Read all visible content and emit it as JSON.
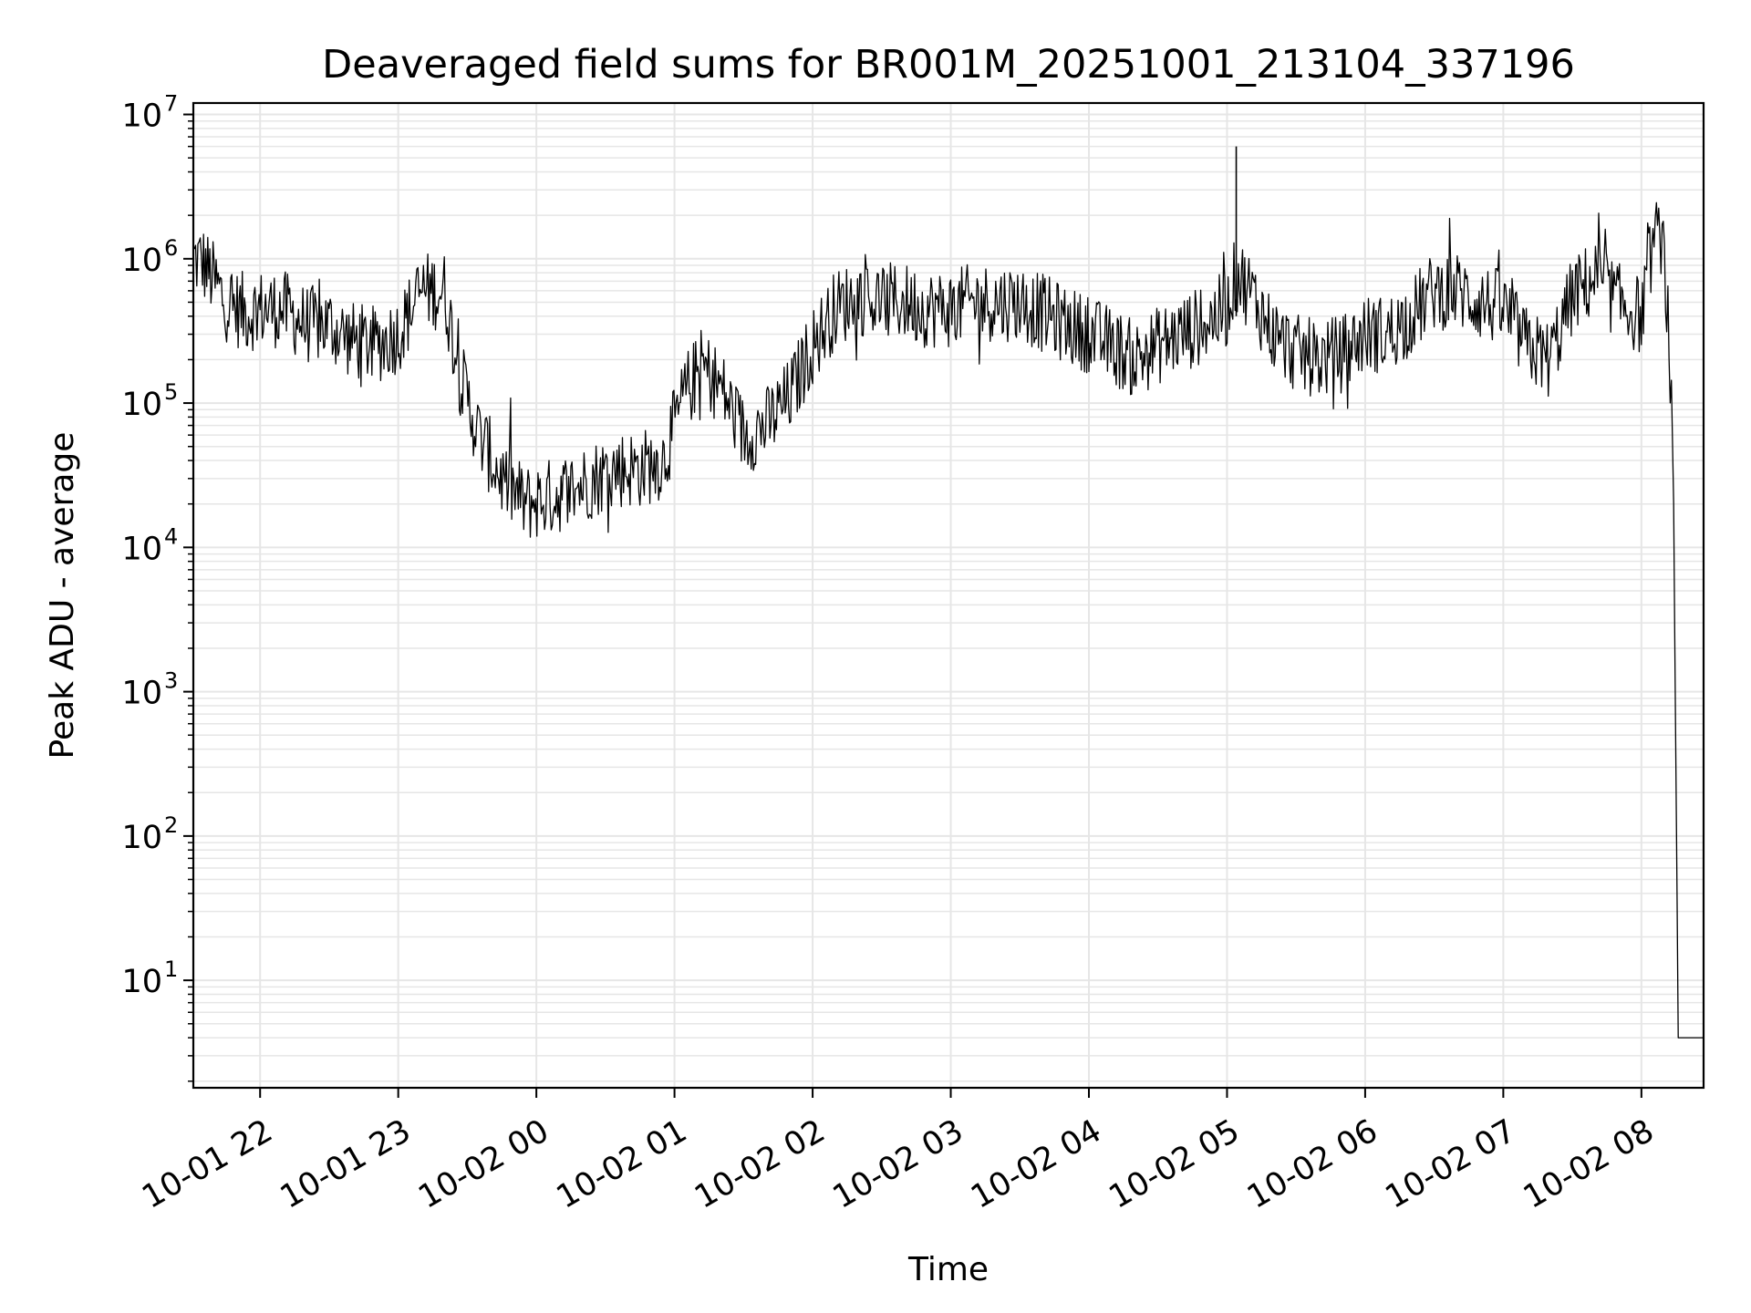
{
  "chart_data": {
    "type": "line",
    "title": "Deaveraged field sums for BR001M_20251001_213104_337196",
    "xlabel": "Time",
    "ylabel": "Peak ADU - average",
    "yscale": "log",
    "xlim": [
      "2025-10-01T21:31",
      "2025-10-02T08:27"
    ],
    "ylim": [
      1.8,
      12000000
    ],
    "grid": true,
    "line_color": "#000000",
    "grid_color": "#e6e6e6",
    "x_ticks": [
      {
        "t": "2025-10-01T22:00",
        "label": "10-01 22"
      },
      {
        "t": "2025-10-01T23:00",
        "label": "10-01 23"
      },
      {
        "t": "2025-10-02T00:00",
        "label": "10-02 00"
      },
      {
        "t": "2025-10-02T01:00",
        "label": "10-02 01"
      },
      {
        "t": "2025-10-02T02:00",
        "label": "10-02 02"
      },
      {
        "t": "2025-10-02T03:00",
        "label": "10-02 03"
      },
      {
        "t": "2025-10-02T04:00",
        "label": "10-02 04"
      },
      {
        "t": "2025-10-02T05:00",
        "label": "10-02 05"
      },
      {
        "t": "2025-10-02T06:00",
        "label": "10-02 06"
      },
      {
        "t": "2025-10-02T07:00",
        "label": "10-02 07"
      },
      {
        "t": "2025-10-02T08:00",
        "label": "10-02 08"
      }
    ],
    "y_ticks": [
      {
        "value": 10,
        "base": "10",
        "exp": "1"
      },
      {
        "value": 100,
        "base": "10",
        "exp": "2"
      },
      {
        "value": 1000,
        "base": "10",
        "exp": "3"
      },
      {
        "value": 10000,
        "base": "10",
        "exp": "4"
      },
      {
        "value": 100000,
        "base": "10",
        "exp": "5"
      },
      {
        "value": 1000000,
        "base": "10",
        "exp": "6"
      },
      {
        "value": 10000000,
        "base": "10",
        "exp": "7"
      }
    ],
    "series": [
      {
        "x": [
          "2025-10-01T21:31",
          "2025-10-01T21:35",
          "2025-10-01T21:40",
          "2025-10-01T21:45",
          "2025-10-01T21:50",
          "2025-10-01T21:55",
          "2025-10-01T22:00",
          "2025-10-01T22:10",
          "2025-10-01T22:20",
          "2025-10-01T22:30",
          "2025-10-01T22:40",
          "2025-10-01T22:50",
          "2025-10-01T23:00",
          "2025-10-01T23:10",
          "2025-10-01T23:20",
          "2025-10-01T23:27",
          "2025-10-01T23:35",
          "2025-10-01T23:45",
          "2025-10-01T23:55",
          "2025-10-02T00:05",
          "2025-10-02T00:15",
          "2025-10-02T00:25",
          "2025-10-02T00:35",
          "2025-10-02T00:45",
          "2025-10-02T00:55",
          "2025-10-02T01:05",
          "2025-10-02T01:12",
          "2025-10-02T01:20",
          "2025-10-02T01:30",
          "2025-10-02T01:40",
          "2025-10-02T01:50",
          "2025-10-02T02:00",
          "2025-10-02T02:10",
          "2025-10-02T02:20",
          "2025-10-02T02:30",
          "2025-10-02T02:40",
          "2025-10-02T02:50",
          "2025-10-02T03:00",
          "2025-10-02T03:10",
          "2025-10-02T03:20",
          "2025-10-02T03:30",
          "2025-10-02T03:40",
          "2025-10-02T03:50",
          "2025-10-02T04:00",
          "2025-10-02T04:10",
          "2025-10-02T04:20",
          "2025-10-02T04:30",
          "2025-10-02T04:40",
          "2025-10-02T04:50",
          "2025-10-02T05:00",
          "2025-10-02T05:04",
          "2025-10-02T05:10",
          "2025-10-02T05:20",
          "2025-10-02T05:30",
          "2025-10-02T05:40",
          "2025-10-02T05:50",
          "2025-10-02T06:00",
          "2025-10-02T06:10",
          "2025-10-02T06:20",
          "2025-10-02T06:30",
          "2025-10-02T06:40",
          "2025-10-02T06:50",
          "2025-10-02T07:00",
          "2025-10-02T07:10",
          "2025-10-02T07:20",
          "2025-10-02T07:30",
          "2025-10-02T07:40",
          "2025-10-02T07:50",
          "2025-10-02T08:00",
          "2025-10-02T08:05",
          "2025-10-02T08:09",
          "2025-10-02T08:12",
          "2025-10-02T08:14",
          "2025-10-02T08:16",
          "2025-10-02T08:27"
        ],
        "y": [
          1000000,
          950000,
          700000,
          500000,
          450000,
          420000,
          450000,
          450000,
          350000,
          350000,
          270000,
          250000,
          300000,
          600000,
          600000,
          150000,
          60000,
          30000,
          20000,
          22000,
          25000,
          30000,
          35000,
          35000,
          40000,
          120000,
          180000,
          130000,
          60000,
          70000,
          110000,
          250000,
          450000,
          550000,
          500000,
          500000,
          450000,
          450000,
          500000,
          500000,
          500000,
          420000,
          350000,
          300000,
          250000,
          200000,
          250000,
          300000,
          350000,
          450000,
          800000,
          600000,
          300000,
          220000,
          200000,
          220000,
          300000,
          300000,
          400000,
          600000,
          600000,
          500000,
          450000,
          250000,
          200000,
          550000,
          750000,
          500000,
          400000,
          1300000,
          1500000,
          300000,
          20000,
          4,
          4
        ]
      }
    ]
  }
}
